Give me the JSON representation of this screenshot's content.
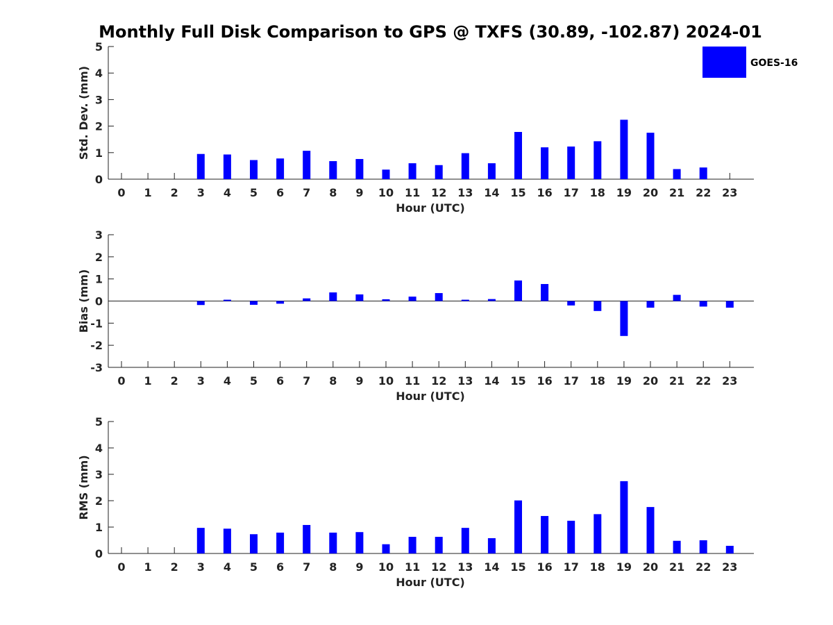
{
  "chart_data": {
    "title": "Monthly Full Disk Comparison to GPS @ TXFS (30.89, -102.87) 2024-01",
    "legend": {
      "label": "GOES-16",
      "color": "#0000ff",
      "placement": "top-right"
    },
    "panels": [
      {
        "type": "bar",
        "ylabel": "Std. Dev. (mm)",
        "xlabel": "Hour (UTC)",
        "ylim": [
          0,
          5
        ],
        "yticks": [
          "0",
          "1",
          "2",
          "3",
          "4",
          "5"
        ],
        "categories": [
          "0",
          "1",
          "2",
          "3",
          "4",
          "5",
          "6",
          "7",
          "8",
          "9",
          "10",
          "11",
          "12",
          "13",
          "14",
          "15",
          "16",
          "17",
          "18",
          "19",
          "20",
          "21",
          "22",
          "23"
        ],
        "series": [
          {
            "name": "GOES-16",
            "values": [
              null,
              null,
              null,
              0.95,
              0.93,
              0.72,
              0.78,
              1.07,
              0.68,
              0.76,
              0.36,
              0.6,
              0.53,
              0.98,
              0.6,
              1.78,
              1.2,
              1.23,
              1.43,
              2.24,
              1.75,
              0.38,
              0.44,
              null
            ]
          }
        ]
      },
      {
        "type": "bar",
        "ylabel": "Bias (mm)",
        "xlabel": "Hour (UTC)",
        "ylim": [
          -3,
          3
        ],
        "yticks": [
          "-3",
          "-2",
          "-1",
          "0",
          "1",
          "2",
          "3"
        ],
        "categories": [
          "0",
          "1",
          "2",
          "3",
          "4",
          "5",
          "6",
          "7",
          "8",
          "9",
          "10",
          "11",
          "12",
          "13",
          "14",
          "15",
          "16",
          "17",
          "18",
          "19",
          "20",
          "21",
          "22",
          "23"
        ],
        "series": [
          {
            "name": "GOES-16",
            "values": [
              null,
              null,
              null,
              -0.18,
              0.06,
              -0.17,
              -0.12,
              0.12,
              0.39,
              0.3,
              0.08,
              0.2,
              0.36,
              0.06,
              0.09,
              0.93,
              0.77,
              -0.2,
              -0.45,
              -1.58,
              -0.3,
              0.28,
              -0.25,
              -0.3
            ]
          }
        ]
      },
      {
        "type": "bar",
        "ylabel": "RMS (mm)",
        "xlabel": "Hour (UTC)",
        "ylim": [
          0,
          5
        ],
        "yticks": [
          "0",
          "1",
          "2",
          "3",
          "4",
          "5"
        ],
        "categories": [
          "0",
          "1",
          "2",
          "3",
          "4",
          "5",
          "6",
          "7",
          "8",
          "9",
          "10",
          "11",
          "12",
          "13",
          "14",
          "15",
          "16",
          "17",
          "18",
          "19",
          "20",
          "21",
          "22",
          "23"
        ],
        "series": [
          {
            "name": "GOES-16",
            "values": [
              null,
              null,
              null,
              0.97,
              0.94,
              0.73,
              0.79,
              1.08,
              0.79,
              0.81,
              0.35,
              0.63,
              0.63,
              0.97,
              0.58,
              2.01,
              1.42,
              1.24,
              1.49,
              2.74,
              1.76,
              0.48,
              0.5,
              0.29
            ]
          }
        ]
      }
    ]
  }
}
